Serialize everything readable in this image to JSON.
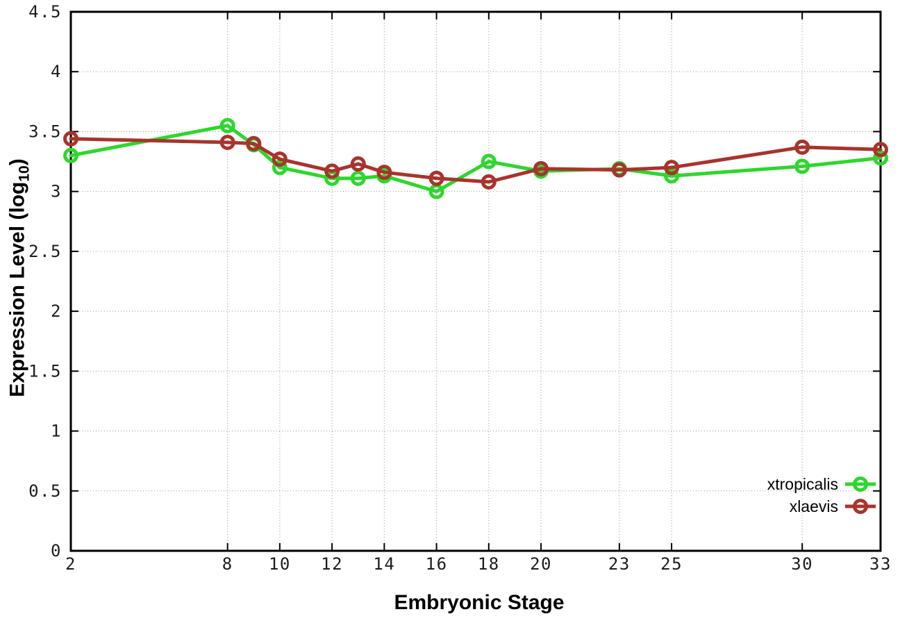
{
  "chart_data": {
    "type": "line",
    "title": "",
    "xlabel": "Embryonic Stage",
    "ylabel": "Expression Level (log10)",
    "ylabel_parts": {
      "prefix": "Expression Level (log",
      "subscript": "10",
      "suffix": ")"
    },
    "x": [
      2,
      8,
      9,
      10,
      12,
      13,
      14,
      16,
      18,
      20,
      23,
      25,
      30,
      33
    ],
    "series": [
      {
        "name": "xtropicalis",
        "color": "#2dd72d",
        "values": [
          3.3,
          3.55,
          3.39,
          3.2,
          3.11,
          3.11,
          3.13,
          3.0,
          3.25,
          3.17,
          3.19,
          3.13,
          3.21,
          3.28
        ]
      },
      {
        "name": "xlaevis",
        "color": "#a8342c",
        "values": [
          3.44,
          3.41,
          3.4,
          3.27,
          3.17,
          3.23,
          3.16,
          3.11,
          3.08,
          3.19,
          3.18,
          3.2,
          3.37,
          3.35
        ]
      }
    ],
    "xticks": {
      "values": [
        2,
        8,
        10,
        12,
        14,
        16,
        18,
        20,
        23,
        25,
        30,
        33
      ],
      "labels": [
        "2",
        "8",
        "10",
        "12",
        "14",
        "16",
        "18",
        "20",
        "23",
        "25",
        "30",
        "33"
      ]
    },
    "yticks": {
      "values": [
        0,
        0.5,
        1,
        1.5,
        2,
        2.5,
        3,
        3.5,
        4,
        4.5
      ],
      "labels": [
        "0",
        "0.5",
        "1",
        "1.5",
        "2",
        "2.5",
        "3",
        "3.5",
        "4",
        "4.5"
      ]
    },
    "xlim": [
      2,
      33
    ],
    "ylim": [
      0,
      4.5
    ],
    "grid": true,
    "legend_position": "inside-bottom-right",
    "marker": "open-circle",
    "axis_color": "#000000",
    "grid_color": "#999999",
    "background": "#ffffff"
  }
}
